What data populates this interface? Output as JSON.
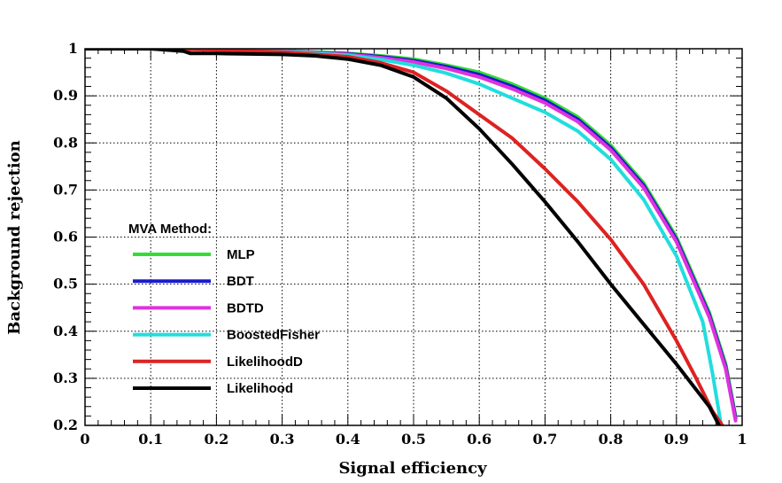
{
  "chart_data": {
    "type": "line",
    "title": "",
    "xlabel": "Signal efficiency",
    "ylabel": "Background rejection",
    "xlim": [
      0,
      1
    ],
    "ylim": [
      0.2,
      1
    ],
    "grid": true,
    "x_ticks": [
      "0",
      "0.1",
      "0.2",
      "0.3",
      "0.4",
      "0.5",
      "0.6",
      "0.7",
      "0.8",
      "0.9",
      "1"
    ],
    "y_ticks": [
      "0.2",
      "0.3",
      "0.4",
      "0.5",
      "0.6",
      "0.7",
      "0.8",
      "0.9",
      "1"
    ],
    "legend": {
      "title": "MVA Method:",
      "placement": "center-left"
    },
    "series": [
      {
        "name": "MLP",
        "color": "#33dd33",
        "x": [
          0,
          0.1,
          0.2,
          0.3,
          0.4,
          0.45,
          0.5,
          0.55,
          0.6,
          0.65,
          0.7,
          0.75,
          0.8,
          0.85,
          0.9,
          0.95,
          0.975,
          0.99
        ],
        "y": [
          1.0,
          1.0,
          0.999,
          0.996,
          0.99,
          0.985,
          0.978,
          0.965,
          0.95,
          0.925,
          0.895,
          0.855,
          0.795,
          0.715,
          0.6,
          0.44,
          0.33,
          0.22
        ]
      },
      {
        "name": "BDT",
        "color": "#1a1acc",
        "x": [
          0,
          0.1,
          0.2,
          0.3,
          0.4,
          0.45,
          0.5,
          0.55,
          0.6,
          0.65,
          0.7,
          0.75,
          0.8,
          0.85,
          0.9,
          0.95,
          0.975,
          0.99
        ],
        "y": [
          1.0,
          1.0,
          0.999,
          0.995,
          0.989,
          0.983,
          0.975,
          0.962,
          0.945,
          0.92,
          0.89,
          0.85,
          0.79,
          0.71,
          0.595,
          0.435,
          0.325,
          0.215
        ]
      },
      {
        "name": "BDTD",
        "color": "#dd33dd",
        "x": [
          0,
          0.1,
          0.2,
          0.3,
          0.4,
          0.45,
          0.5,
          0.55,
          0.6,
          0.65,
          0.7,
          0.75,
          0.8,
          0.85,
          0.9,
          0.95,
          0.975,
          0.99
        ],
        "y": [
          1.0,
          1.0,
          0.999,
          0.995,
          0.988,
          0.981,
          0.972,
          0.958,
          0.94,
          0.915,
          0.885,
          0.845,
          0.785,
          0.705,
          0.59,
          0.43,
          0.32,
          0.21
        ]
      },
      {
        "name": "BoostedFisher",
        "color": "#22dddd",
        "x": [
          0,
          0.1,
          0.2,
          0.3,
          0.4,
          0.45,
          0.5,
          0.55,
          0.6,
          0.65,
          0.7,
          0.75,
          0.8,
          0.85,
          0.9,
          0.94,
          0.955,
          0.968
        ],
        "y": [
          1.0,
          1.0,
          0.998,
          0.994,
          0.986,
          0.977,
          0.965,
          0.948,
          0.925,
          0.895,
          0.865,
          0.825,
          0.765,
          0.68,
          0.56,
          0.42,
          0.31,
          0.2
        ]
      },
      {
        "name": "LikelihoodD",
        "color": "#dd2222",
        "x": [
          0,
          0.1,
          0.2,
          0.3,
          0.4,
          0.45,
          0.5,
          0.55,
          0.6,
          0.65,
          0.7,
          0.75,
          0.8,
          0.85,
          0.9,
          0.93,
          0.955,
          0.97
        ],
        "y": [
          1.0,
          1.0,
          0.998,
          0.993,
          0.983,
          0.97,
          0.95,
          0.91,
          0.86,
          0.81,
          0.745,
          0.675,
          0.595,
          0.5,
          0.38,
          0.3,
          0.23,
          0.2
        ]
      },
      {
        "name": "Likelihood",
        "color": "#000000",
        "x": [
          0,
          0.1,
          0.15,
          0.16,
          0.2,
          0.3,
          0.35,
          0.4,
          0.45,
          0.5,
          0.55,
          0.6,
          0.65,
          0.7,
          0.75,
          0.8,
          0.85,
          0.9,
          0.95,
          0.965
        ],
        "y": [
          1.0,
          1.0,
          0.995,
          0.99,
          0.99,
          0.988,
          0.985,
          0.978,
          0.965,
          0.94,
          0.895,
          0.83,
          0.755,
          0.675,
          0.59,
          0.5,
          0.415,
          0.33,
          0.24,
          0.2
        ]
      }
    ]
  }
}
